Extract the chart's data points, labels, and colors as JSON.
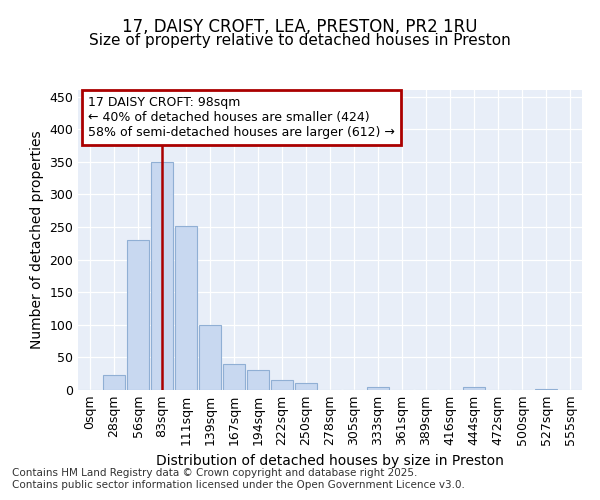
{
  "title_line1": "17, DAISY CROFT, LEA, PRESTON, PR2 1RU",
  "title_line2": "Size of property relative to detached houses in Preston",
  "xlabel": "Distribution of detached houses by size in Preston",
  "ylabel": "Number of detached properties",
  "categories": [
    "0sqm",
    "28sqm",
    "56sqm",
    "83sqm",
    "111sqm",
    "139sqm",
    "167sqm",
    "194sqm",
    "222sqm",
    "250sqm",
    "278sqm",
    "305sqm",
    "333sqm",
    "361sqm",
    "389sqm",
    "416sqm",
    "444sqm",
    "472sqm",
    "500sqm",
    "527sqm",
    "555sqm"
  ],
  "bar_values": [
    0,
    23,
    230,
    350,
    252,
    100,
    40,
    30,
    15,
    11,
    0,
    0,
    5,
    0,
    0,
    0,
    4,
    0,
    0,
    2,
    0
  ],
  "bar_color": "#c8d8f0",
  "bar_edge_color": "#90afd4",
  "vline_x": 3.85,
  "vline_color": "#aa0000",
  "annotation_text": "17 DAISY CROFT: 98sqm\n← 40% of detached houses are smaller (424)\n58% of semi-detached houses are larger (612) →",
  "annotation_box_color": "#aa0000",
  "ylim": [
    0,
    460
  ],
  "yticks": [
    0,
    50,
    100,
    150,
    200,
    250,
    300,
    350,
    400,
    450
  ],
  "footnote": "Contains HM Land Registry data © Crown copyright and database right 2025.\nContains public sector information licensed under the Open Government Licence v3.0.",
  "bg_color": "#ffffff",
  "plot_bg_color": "#e8eef8",
  "grid_color": "#ffffff",
  "title_fontsize": 12,
  "subtitle_fontsize": 11,
  "axis_label_fontsize": 10,
  "tick_fontsize": 9,
  "annotation_fontsize": 9,
  "footnote_fontsize": 7.5
}
